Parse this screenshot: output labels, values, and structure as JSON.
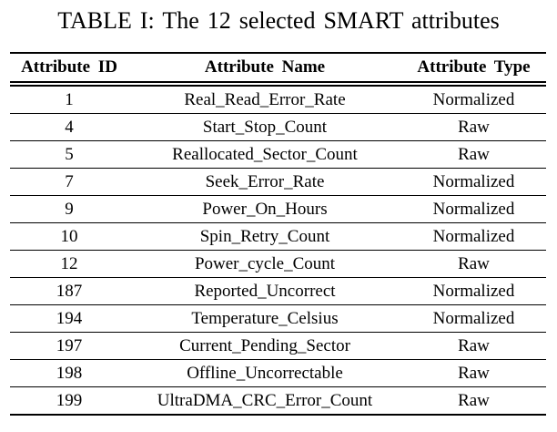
{
  "caption": {
    "text": "TABLE I: The 12 selected SMART attributes"
  },
  "table": {
    "columns": [
      {
        "key": "id",
        "label": "Attribute ID"
      },
      {
        "key": "name",
        "label": "Attribute Name"
      },
      {
        "key": "type",
        "label": "Attribute Type"
      }
    ],
    "rows": [
      {
        "id": "1",
        "name": "Real_Read_Error_Rate",
        "type": "Normalized"
      },
      {
        "id": "4",
        "name": "Start_Stop_Count",
        "type": "Raw"
      },
      {
        "id": "5",
        "name": "Reallocated_Sector_Count",
        "type": "Raw"
      },
      {
        "id": "7",
        "name": "Seek_Error_Rate",
        "type": "Normalized"
      },
      {
        "id": "9",
        "name": "Power_On_Hours",
        "type": "Normalized"
      },
      {
        "id": "10",
        "name": "Spin_Retry_Count",
        "type": "Normalized"
      },
      {
        "id": "12",
        "name": "Power_cycle_Count",
        "type": "Raw"
      },
      {
        "id": "187",
        "name": "Reported_Uncorrect",
        "type": "Normalized"
      },
      {
        "id": "194",
        "name": "Temperature_Celsius",
        "type": "Normalized"
      },
      {
        "id": "197",
        "name": "Current_Pending_Sector",
        "type": "Raw"
      },
      {
        "id": "198",
        "name": "Offline_Uncorrectable",
        "type": "Raw"
      },
      {
        "id": "199",
        "name": "UltraDMA_CRC_Error_Count",
        "type": "Raw"
      }
    ]
  },
  "colors": {
    "background": "#ffffff",
    "text": "#000000",
    "rule": "#000000"
  }
}
